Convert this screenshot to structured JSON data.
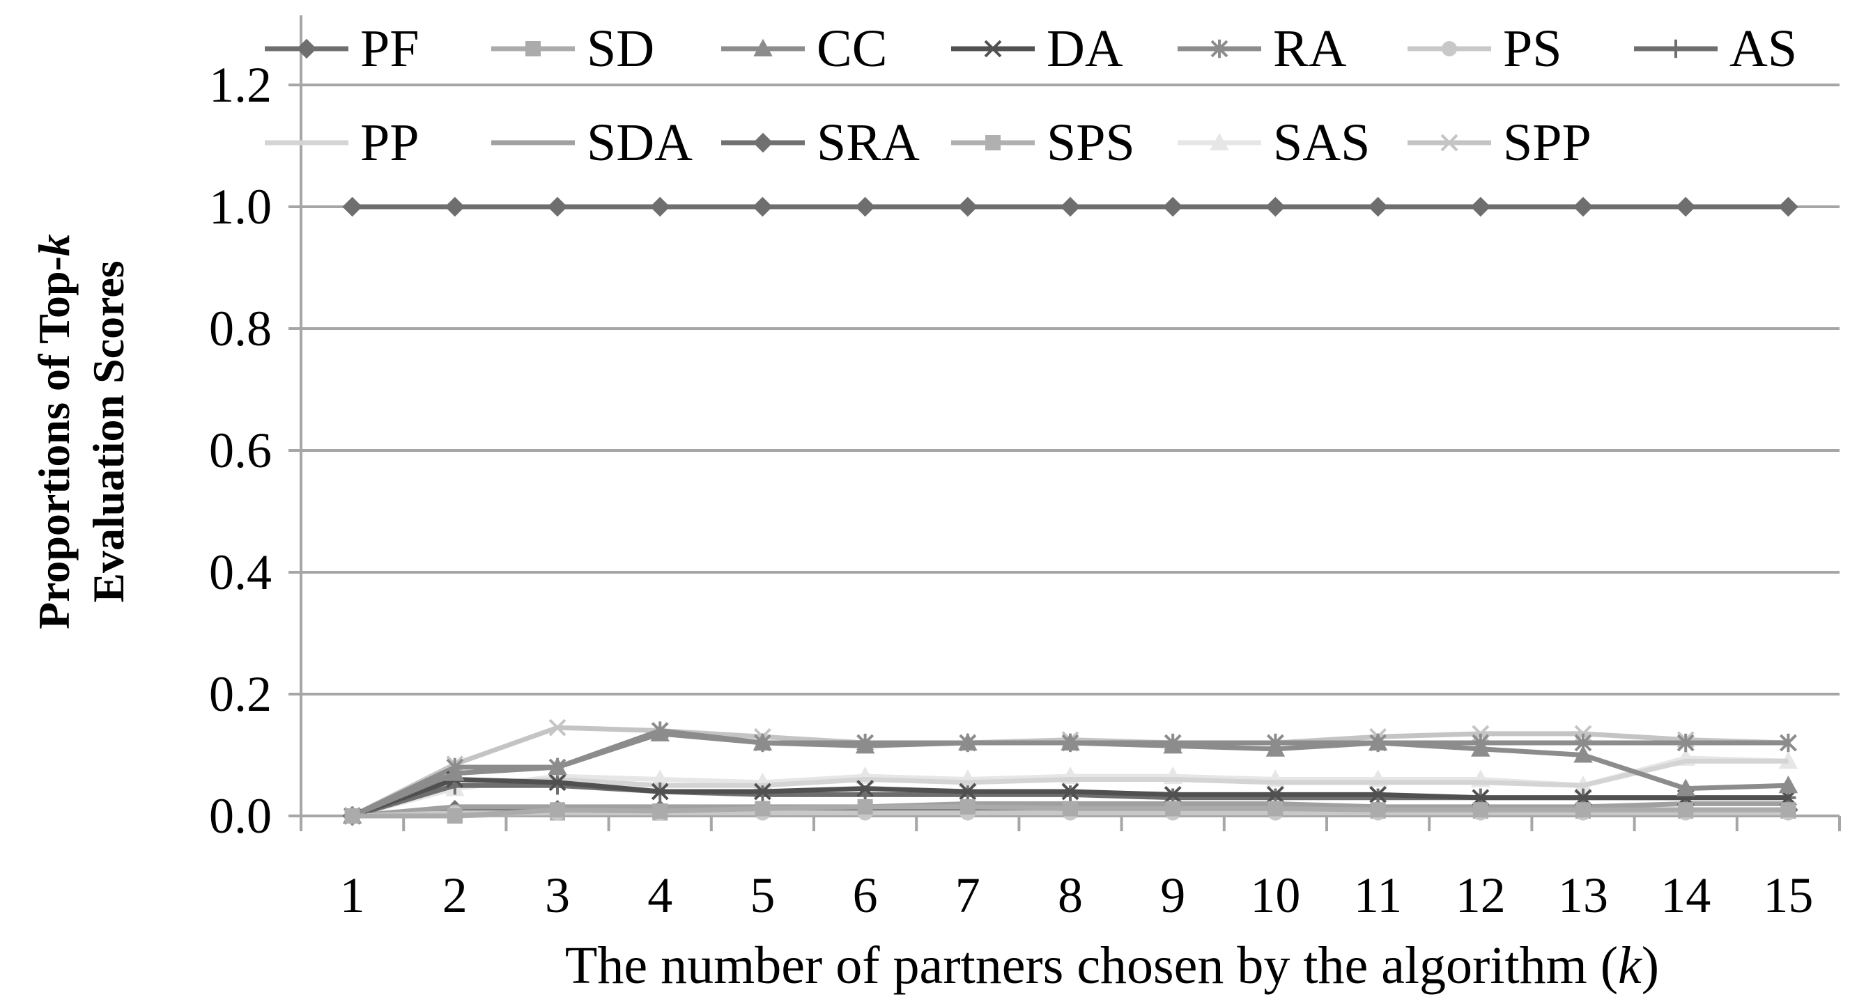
{
  "chart_data": {
    "type": "line",
    "title": "",
    "ylabel_line1": "Proportions of Top-",
    "ylabel_line1_italic": "k",
    "ylabel_line2": "Evaluation Scores",
    "xlabel_main": "The number of partners chosen by the algorithm (",
    "xlabel_italic": "k",
    "xlabel_close": ")",
    "categories": [
      "1",
      "2",
      "3",
      "4",
      "5",
      "6",
      "7",
      "8",
      "9",
      "10",
      "11",
      "12",
      "13",
      "14",
      "15"
    ],
    "y_ticks": [
      "0.0",
      "0.2",
      "0.4",
      "0.6",
      "0.8",
      "1.0",
      "1.2"
    ],
    "ylim": [
      0,
      1.3
    ],
    "grid": true,
    "legend_position": "top",
    "series": [
      {
        "name": "PF",
        "marker": "diamond",
        "color": "#6e6e6e",
        "values": [
          1,
          1,
          1,
          1,
          1,
          1,
          1,
          1,
          1,
          1,
          1,
          1,
          1,
          1,
          1
        ]
      },
      {
        "name": "SD",
        "marker": "square",
        "color": "#ababab",
        "values": [
          0,
          0,
          0.01,
          0.008,
          0.012,
          0.015,
          0.015,
          0.012,
          0.012,
          0.012,
          0.01,
          0.01,
          0.01,
          0.01,
          0.01
        ]
      },
      {
        "name": "CC",
        "marker": "triangle",
        "color": "#8c8c8c",
        "values": [
          0,
          0.07,
          0.08,
          0.135,
          0.12,
          0.115,
          0.12,
          0.12,
          0.115,
          0.11,
          0.12,
          0.11,
          0.1,
          0.045,
          0.05
        ]
      },
      {
        "name": "DA",
        "marker": "x",
        "color": "#505050",
        "values": [
          0,
          0.06,
          0.055,
          0.04,
          0.04,
          0.045,
          0.04,
          0.04,
          0.035,
          0.035,
          0.035,
          0.03,
          0.03,
          0.03,
          0.03
        ]
      },
      {
        "name": "RA",
        "marker": "star",
        "color": "#8c8c8c",
        "values": [
          0,
          0.08,
          0.08,
          0.14,
          0.12,
          0.12,
          0.12,
          0.12,
          0.12,
          0.12,
          0.12,
          0.12,
          0.12,
          0.12,
          0.12
        ]
      },
      {
        "name": "PS",
        "marker": "circle",
        "color": "#c8c8c8",
        "values": [
          0,
          0.005,
          0.005,
          0.005,
          0.005,
          0.005,
          0.005,
          0.005,
          0.005,
          0.005,
          0.005,
          0.005,
          0.005,
          0.005,
          0.005
        ]
      },
      {
        "name": "AS",
        "marker": "plus",
        "color": "#6e6e6e",
        "values": [
          0,
          0.05,
          0.05,
          0.04,
          0.035,
          0.035,
          0.035,
          0.035,
          0.03,
          0.03,
          0.03,
          0.03,
          0.03,
          0.03,
          0.03
        ]
      },
      {
        "name": "PP",
        "marker": "none",
        "color": "#d4d4d4",
        "values": [
          0,
          0.05,
          0.06,
          0.05,
          0.05,
          0.06,
          0.055,
          0.06,
          0.06,
          0.055,
          0.055,
          0.055,
          0.05,
          0.09,
          0.09
        ]
      },
      {
        "name": "SDA",
        "marker": "none",
        "color": "#a0a0a0",
        "values": [
          0,
          0.015,
          0.015,
          0.015,
          0.015,
          0.015,
          0.02,
          0.02,
          0.02,
          0.02,
          0.015,
          0.015,
          0.015,
          0.02,
          0.02
        ]
      },
      {
        "name": "SRA",
        "marker": "diamond",
        "color": "#707070",
        "values": [
          0,
          0.01,
          0.01,
          0.01,
          0.01,
          0.01,
          0.01,
          0.01,
          0.01,
          0.01,
          0.01,
          0.01,
          0.01,
          0.01,
          0.01
        ]
      },
      {
        "name": "SPS",
        "marker": "square",
        "color": "#b0b0b0",
        "values": [
          0,
          0,
          0.005,
          0.005,
          0.01,
          0.012,
          0.012,
          0.01,
          0.01,
          0.01,
          0.008,
          0.008,
          0.008,
          0.008,
          0.008
        ]
      },
      {
        "name": "SAS",
        "marker": "triangle",
        "color": "#e6e6e6",
        "values": [
          0,
          0.045,
          0.065,
          0.06,
          0.055,
          0.065,
          0.06,
          0.065,
          0.065,
          0.06,
          0.06,
          0.06,
          0.05,
          0.095,
          0.09
        ]
      },
      {
        "name": "SPP",
        "marker": "x",
        "color": "#c4c4c4",
        "values": [
          0,
          0.085,
          0.145,
          0.14,
          0.13,
          0.12,
          0.12,
          0.125,
          0.12,
          0.12,
          0.13,
          0.135,
          0.135,
          0.125,
          0.12
        ]
      }
    ]
  }
}
